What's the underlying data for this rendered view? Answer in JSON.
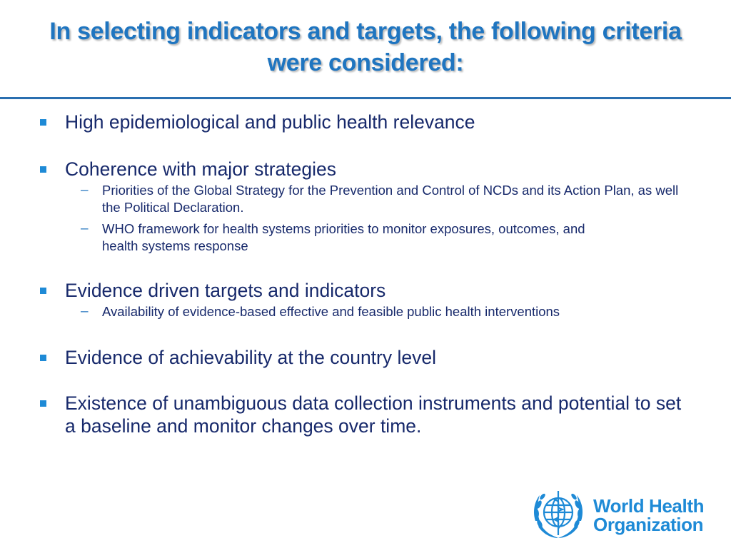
{
  "slide": {
    "title": "In selecting indicators and targets, the following criteria were considered:",
    "bullets": [
      {
        "text": "High epidemiological and public health relevance",
        "sub": []
      },
      {
        "text": "Coherence with major strategies",
        "sub": [
          "Priorities of the Global Strategy for the Prevention and Control of NCDs and its Action Plan, as well the Political Declaration.",
          "WHO framework for health systems priorities to monitor exposures, outcomes, and health systems response"
        ]
      },
      {
        "text": "Evidence driven targets and indicators",
        "sub": [
          "Availability of evidence-based effective and feasible public health interventions"
        ]
      },
      {
        "text": "Evidence of achievability at the country level",
        "sub": []
      },
      {
        "text": "Existence of unambiguous data collection instruments and potential to set a baseline and monitor changes over time.",
        "sub": []
      }
    ],
    "sub_marker": "–"
  },
  "logo": {
    "line1": "World Health",
    "line2": "Organization",
    "icon": "who-emblem-icon",
    "color": "#1e8ad6"
  },
  "colors": {
    "title": "#1f75c0",
    "body_text": "#17296b",
    "bullet": "#1e8ad6",
    "rule": "#2a6fb0"
  }
}
